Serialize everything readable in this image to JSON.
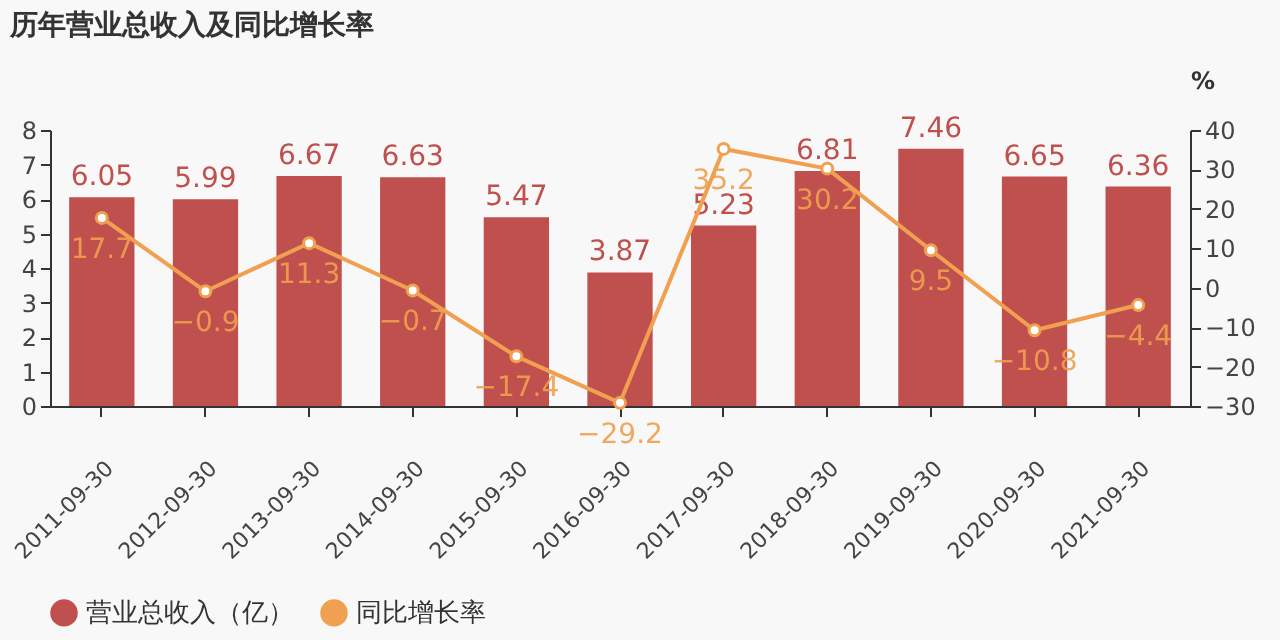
{
  "chart_data": {
    "type": "bar",
    "title": "历年营业总收入及同比增长率",
    "y2label": "%",
    "categories": [
      "2011-09-30",
      "2012-09-30",
      "2013-09-30",
      "2014-09-30",
      "2015-09-30",
      "2016-09-30",
      "2017-09-30",
      "2018-09-30",
      "2019-09-30",
      "2020-09-30",
      "2021-09-30"
    ],
    "series": [
      {
        "name": "营业总收入（亿）",
        "color": "#c0504d",
        "values": [
          6.05,
          5.99,
          6.67,
          6.63,
          5.47,
          3.87,
          5.23,
          6.81,
          7.46,
          6.65,
          6.36
        ]
      },
      {
        "name": "同比增长率",
        "type": "line",
        "axis": "y2",
        "color": "#f0a050",
        "values": [
          17.7,
          -0.9,
          11.3,
          -0.7,
          -17.4,
          -29.2,
          35.2,
          30.2,
          9.5,
          -10.8,
          -4.4
        ]
      }
    ],
    "ylim": [
      0,
      8
    ],
    "yticks": [
      0,
      1,
      2,
      3,
      4,
      5,
      6,
      7,
      8
    ],
    "y2lim": [
      -30,
      40
    ],
    "y2ticks": [
      -30,
      -20,
      -10,
      0,
      10,
      20,
      30,
      40
    ],
    "data_labels": true,
    "legend": "bottom",
    "grid": false,
    "marker": "circle",
    "line_style": "solid"
  }
}
